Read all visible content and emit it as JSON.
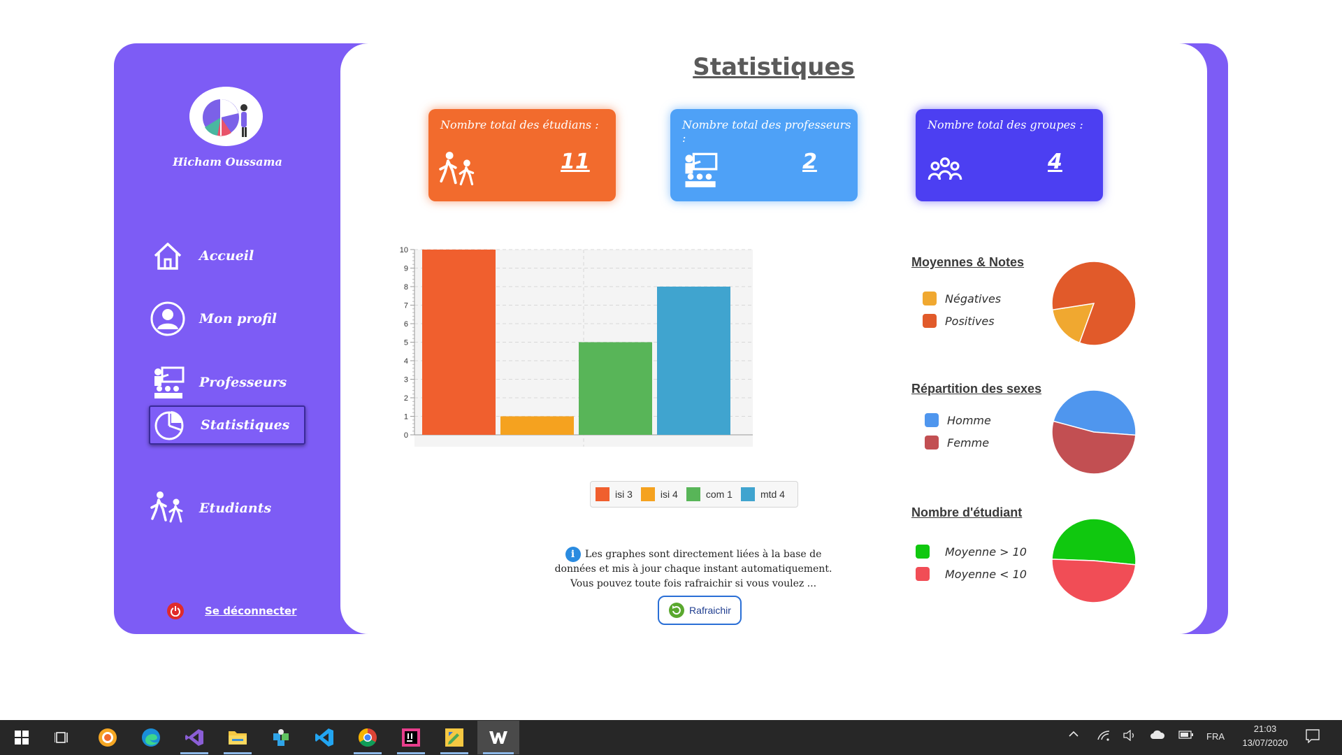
{
  "app": {
    "user_name": "Hicham Oussama",
    "page_title": "Statistiques",
    "nav": [
      {
        "label": "Accueil",
        "icon": "home-icon"
      },
      {
        "label": "Mon profil",
        "icon": "user-profile-icon"
      },
      {
        "label": "Professeurs",
        "icon": "teacher-icon"
      },
      {
        "label": "Statistiques",
        "icon": "pie-chart-icon",
        "active": true
      },
      {
        "label": "Etudiants",
        "icon": "students-walking-icon"
      }
    ],
    "logout_label": "Se déconnecter",
    "colors": {
      "sidebar": "#7d5cf5",
      "card_students": "#f26b2d",
      "card_profs": "#4ea1f7",
      "card_groups": "#4c3ff2"
    }
  },
  "cards": [
    {
      "label": "Nombre total des étudians :",
      "value": "11",
      "icon": "students-walking-icon"
    },
    {
      "label": "Nombre total des professeurs :",
      "value": "2",
      "icon": "teacher-board-icon"
    },
    {
      "label": "Nombre total des groupes :",
      "value": "4",
      "icon": "group-people-icon"
    }
  ],
  "chart_data": [
    {
      "type": "bar",
      "categories": [
        "isi 3",
        "isi 4",
        "com 1",
        "mtd 4"
      ],
      "values": [
        10,
        1,
        5,
        8
      ],
      "colors": [
        "#f05f2e",
        "#f5a21f",
        "#58b558",
        "#40a4cf"
      ],
      "ylim": [
        0,
        11
      ],
      "yticks": [
        "0",
        "1",
        "2",
        "3",
        "4",
        "5",
        "6",
        "7",
        "8",
        "9",
        "10"
      ],
      "grid": true,
      "legend": "bottom"
    },
    {
      "type": "pie",
      "title": "Moyennes & Notes",
      "labels": [
        "Négatives",
        "Positives"
      ],
      "values": [
        17,
        83
      ],
      "colors": [
        "#f0a830",
        "#e15a2a"
      ],
      "legend": "left"
    },
    {
      "type": "pie",
      "title": "Répartition des sexes",
      "labels": [
        "Homme",
        "Femme"
      ],
      "values": [
        47,
        53
      ],
      "colors": [
        "#4f96ee",
        "#c24f52"
      ],
      "legend": "left"
    },
    {
      "type": "pie",
      "title": "Nombre d'étudiant ",
      "labels": [
        "Moyenne > 10",
        "Moyenne  < 10"
      ],
      "values": [
        51,
        49
      ],
      "colors": [
        "#10c80f",
        "#f14d56"
      ],
      "legend": "left"
    }
  ],
  "info": {
    "lines": [
      "Les graphes sont directement liées à la base de",
      "données et mis à jour chaque instant automatiquement.",
      "Vous pouvez toute fois rafraichir si vous voulez ..."
    ],
    "refresh_label": "Rafraichir"
  },
  "taskbar": {
    "language": "FRA",
    "time": "21:03",
    "date": "13/07/2020"
  }
}
